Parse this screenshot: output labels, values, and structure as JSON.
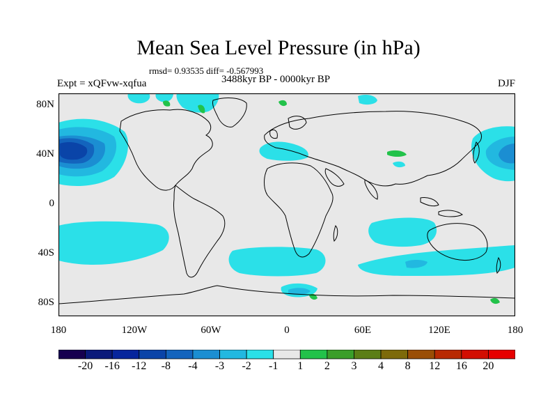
{
  "title": "Mean Sea Level Pressure (in hPa)",
  "stats": "rmsd= 0.93535 diff= -0.567993",
  "experiment": "Expt = xQFvw-xqfua",
  "period": "3488kyr BP - 0000kyr BP",
  "season": "DJF",
  "x_ticks": [
    "180",
    "120W",
    "60W",
    "0",
    "60E",
    "120E",
    "180"
  ],
  "y_ticks": [
    "80N",
    "40N",
    "0",
    "40S",
    "80S"
  ],
  "colorbar": {
    "labels": [
      "-20",
      "-16",
      "-12",
      "-8",
      "-4",
      "-3",
      "-2",
      "-1",
      "1",
      "2",
      "3",
      "4",
      "8",
      "12",
      "16",
      "20"
    ],
    "colors": [
      "#16004f",
      "#0a1a7a",
      "#06259c",
      "#0a44a8",
      "#1364bd",
      "#1b8ed2",
      "#22b8e0",
      "#2be0e8",
      "#e8e8e8",
      "#22c24a",
      "#3a9e2a",
      "#5b7e16",
      "#7d6a0a",
      "#9a4e06",
      "#b82a02",
      "#d20e02",
      "#e60000"
    ]
  },
  "map_colors": {
    "background": "#e8e8e8",
    "neg1": "#2be0e8",
    "neg2": "#22b8e0",
    "neg3": "#1b8ed2",
    "neg4": "#1364bd",
    "neg8": "#0a44a8",
    "pos1": "#22c24a",
    "coast": "#000000"
  }
}
